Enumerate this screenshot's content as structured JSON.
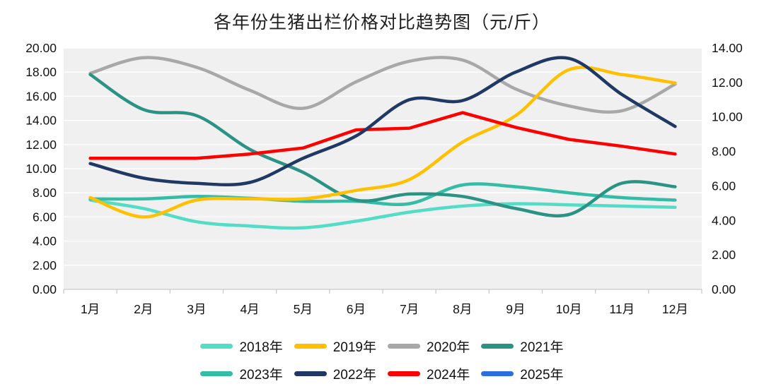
{
  "title": "各年份生猪出栏价格对比趋势图（元/斤）",
  "colors": {
    "background": "#FFFFFF",
    "plot_bg": "#F0F0F0",
    "gridline": "#FFFFFF",
    "axis_line": "#C9C9C9",
    "text": "#111111"
  },
  "chart_data": {
    "type": "line",
    "title": "各年份生猪出栏价格对比趋势图（元/斤）",
    "xlabel": "",
    "ylabel": "",
    "grid": true,
    "legend_position": "bottom",
    "x_labels": [
      "1月",
      "2月",
      "3月",
      "4月",
      "5月",
      "6月",
      "7月",
      "8月",
      "9月",
      "10月",
      "11月",
      "12月"
    ],
    "axes": {
      "left": {
        "min": 0,
        "max": 20,
        "step": 2,
        "tick_labels": [
          "20.00",
          "18.00",
          "16.00",
          "14.00",
          "12.00",
          "10.00",
          "8.00",
          "6.00",
          "4.00",
          "2.00",
          "0.00"
        ]
      },
      "right": {
        "min": 0,
        "max": 14,
        "step": 2,
        "tick_labels": [
          "14.00",
          "12.00",
          "10.00",
          "8.00",
          "6.00",
          "4.00",
          "2.00",
          "0.00"
        ]
      }
    },
    "series": [
      {
        "name": "2018年",
        "year": "2018",
        "color": "#53DCC6",
        "axis": "left",
        "smooth": true,
        "values": [
          7.4,
          6.7,
          5.6,
          5.25,
          5.1,
          5.65,
          6.4,
          6.9,
          7.1,
          7.0,
          6.9,
          6.8
        ]
      },
      {
        "name": "2019年",
        "year": "2019",
        "color": "#FFC000",
        "axis": "left",
        "smooth": true,
        "values": [
          7.6,
          6.0,
          7.4,
          7.5,
          7.5,
          8.2,
          9.1,
          12.2,
          14.4,
          18.2,
          17.8,
          17.1
        ]
      },
      {
        "name": "2020年",
        "year": "2020",
        "color": "#A8A8A8",
        "axis": "left",
        "smooth": true,
        "values": [
          17.9,
          19.2,
          18.4,
          16.5,
          15.0,
          17.2,
          18.9,
          19.0,
          16.6,
          15.2,
          14.8,
          17.0
        ]
      },
      {
        "name": "2021年",
        "year": "2021",
        "color": "#2A9384",
        "axis": "left",
        "smooth": true,
        "values": [
          17.8,
          14.9,
          14.4,
          11.6,
          9.7,
          7.4,
          7.9,
          7.7,
          6.7,
          6.2,
          8.8,
          8.5
        ]
      },
      {
        "name": "2023年",
        "year": "2023",
        "color": "#33BCA6",
        "axis": "left",
        "smooth": true,
        "values": [
          7.5,
          7.5,
          7.7,
          7.55,
          7.3,
          7.3,
          7.1,
          8.65,
          8.5,
          8.0,
          7.6,
          7.4
        ]
      },
      {
        "name": "2022年",
        "year": "2022",
        "color": "#1F3864",
        "axis": "right",
        "smooth": true,
        "values": [
          7.3,
          6.45,
          6.15,
          6.2,
          7.6,
          8.9,
          11.0,
          10.95,
          12.6,
          13.4,
          11.3,
          9.45
        ]
      },
      {
        "name": "2024年",
        "year": "2024",
        "color": "#FF0000",
        "axis": "right",
        "smooth": false,
        "values": [
          7.6,
          7.6,
          7.6,
          7.85,
          8.2,
          9.25,
          9.35,
          10.25,
          9.4,
          8.7,
          8.3,
          7.85
        ]
      },
      {
        "name": "2025年",
        "year": "2025",
        "color": "#2A6FDE",
        "axis": "right",
        "smooth": true,
        "values": []
      }
    ],
    "draw_order": [
      "2020",
      "2018",
      "2023",
      "2021",
      "2019",
      "2024",
      "2022",
      "2025"
    ],
    "legend_rows": [
      [
        "2018",
        "2019",
        "2020",
        "2021"
      ],
      [
        "2023",
        "2022",
        "2024",
        "2025"
      ]
    ]
  }
}
